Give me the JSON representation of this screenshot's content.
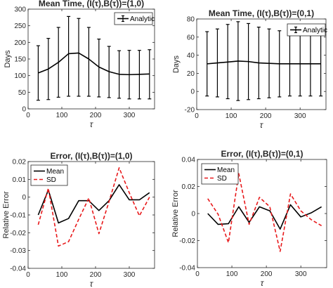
{
  "chart_data": [
    {
      "type": "line",
      "title": "Mean Time, (I(τ),B(τ))=(1,0)",
      "xlabel": "τ",
      "ylabel": "Days",
      "xlim": [
        0,
        375
      ],
      "ylim": [
        0,
        300
      ],
      "xticks": [
        0,
        100,
        200,
        300
      ],
      "yticks": [
        0,
        50,
        100,
        150,
        200,
        250,
        300
      ],
      "grid": false,
      "legend_position": "top-right",
      "x": [
        30,
        60,
        90,
        120,
        150,
        180,
        210,
        240,
        270,
        300,
        330,
        360
      ],
      "series": [
        {
          "name": "Analytic",
          "style": "errorbar",
          "color": "#000000",
          "values": [
            108,
            120,
            140,
            166,
            168,
            150,
            126,
            112,
            104,
            103,
            104,
            105
          ],
          "lower": [
            26,
            28,
            35,
            38,
            38,
            38,
            36,
            34,
            32,
            30,
            30,
            30
          ],
          "upper": [
            190,
            212,
            245,
            278,
            272,
            245,
            210,
            188,
            175,
            176,
            176,
            178
          ]
        }
      ]
    },
    {
      "type": "line",
      "title": "Mean Time, (I(τ),B(τ))=(0,1)",
      "xlabel": "τ",
      "ylabel": "Days",
      "xlim": [
        0,
        375
      ],
      "ylim": [
        -20,
        80
      ],
      "xticks": [
        0,
        100,
        200,
        300
      ],
      "yticks": [
        -20,
        0,
        20,
        40,
        60,
        80
      ],
      "grid": false,
      "legend_position": "top-right",
      "x": [
        30,
        60,
        90,
        120,
        150,
        180,
        210,
        240,
        270,
        300,
        330,
        360
      ],
      "series": [
        {
          "name": "Analytic",
          "style": "errorbar",
          "color": "#000000",
          "values": [
            30.5,
            31.5,
            32.5,
            33.5,
            33,
            31.5,
            31,
            30.5,
            30.5,
            30.5,
            30.5,
            30.5
          ],
          "lower": [
            -5,
            -6,
            -8,
            -10,
            -9,
            -8,
            -7,
            -6,
            -5,
            -5,
            -5,
            -5
          ],
          "upper": [
            66,
            69,
            74,
            77,
            75,
            71,
            69,
            67,
            66,
            66,
            66,
            66
          ]
        }
      ]
    },
    {
      "type": "line",
      "title": "Error, (I(τ),B(τ))=(1,0)",
      "xlabel": "τ",
      "ylabel": "Relative Error",
      "xlim": [
        0,
        375
      ],
      "ylim": [
        -0.04,
        0.02
      ],
      "xticks": [
        0,
        100,
        200,
        300
      ],
      "yticks": [
        -0.04,
        -0.03,
        -0.02,
        -0.01,
        0,
        0.01,
        0.02
      ],
      "grid": false,
      "legend_position": "top-left",
      "x": [
        30,
        60,
        90,
        120,
        150,
        180,
        210,
        240,
        270,
        300,
        330,
        360
      ],
      "series": [
        {
          "name": "Mean",
          "style": "solid",
          "color": "#000000",
          "values": [
            -0.01,
            0.004,
            -0.0145,
            -0.012,
            -0.002,
            -0.002,
            -0.0075,
            -0.002,
            0.007,
            -0.0015,
            -0.0015,
            0.0025
          ]
        },
        {
          "name": "SD",
          "style": "dashed",
          "color": "#e8191b",
          "values": [
            -0.0155,
            0.005,
            -0.0275,
            -0.025,
            -0.0125,
            -0.0005,
            -0.0205,
            -0.0025,
            0.0165,
            0.0025,
            -0.0105,
            0
          ]
        }
      ]
    },
    {
      "type": "line",
      "title": "Error, (I(τ),B(τ))=(0,1)",
      "xlabel": "τ",
      "ylabel": "Relative Error",
      "xlim": [
        0,
        375
      ],
      "ylim": [
        -0.04,
        0.04
      ],
      "xticks": [
        0,
        100,
        200,
        300
      ],
      "yticks": [
        -0.04,
        -0.02,
        0,
        0.02,
        0.04
      ],
      "grid": false,
      "legend_position": "top-left",
      "x": [
        30,
        60,
        90,
        120,
        150,
        180,
        210,
        240,
        270,
        300,
        330,
        360
      ],
      "series": [
        {
          "name": "Mean",
          "style": "solid",
          "color": "#000000",
          "values": [
            0,
            -0.008,
            -0.0075,
            0.005,
            -0.0065,
            0.005,
            0.002,
            -0.0115,
            0.0065,
            -0.0025,
            0.0005,
            0.005
          ]
        },
        {
          "name": "SD",
          "style": "dashed",
          "color": "#e8191b",
          "values": [
            0.011,
            -0.0005,
            -0.0215,
            0.0295,
            -0.008,
            0.012,
            0.005,
            -0.028,
            0.0145,
            0.002,
            -0.0045,
            -0.009
          ]
        }
      ]
    }
  ]
}
